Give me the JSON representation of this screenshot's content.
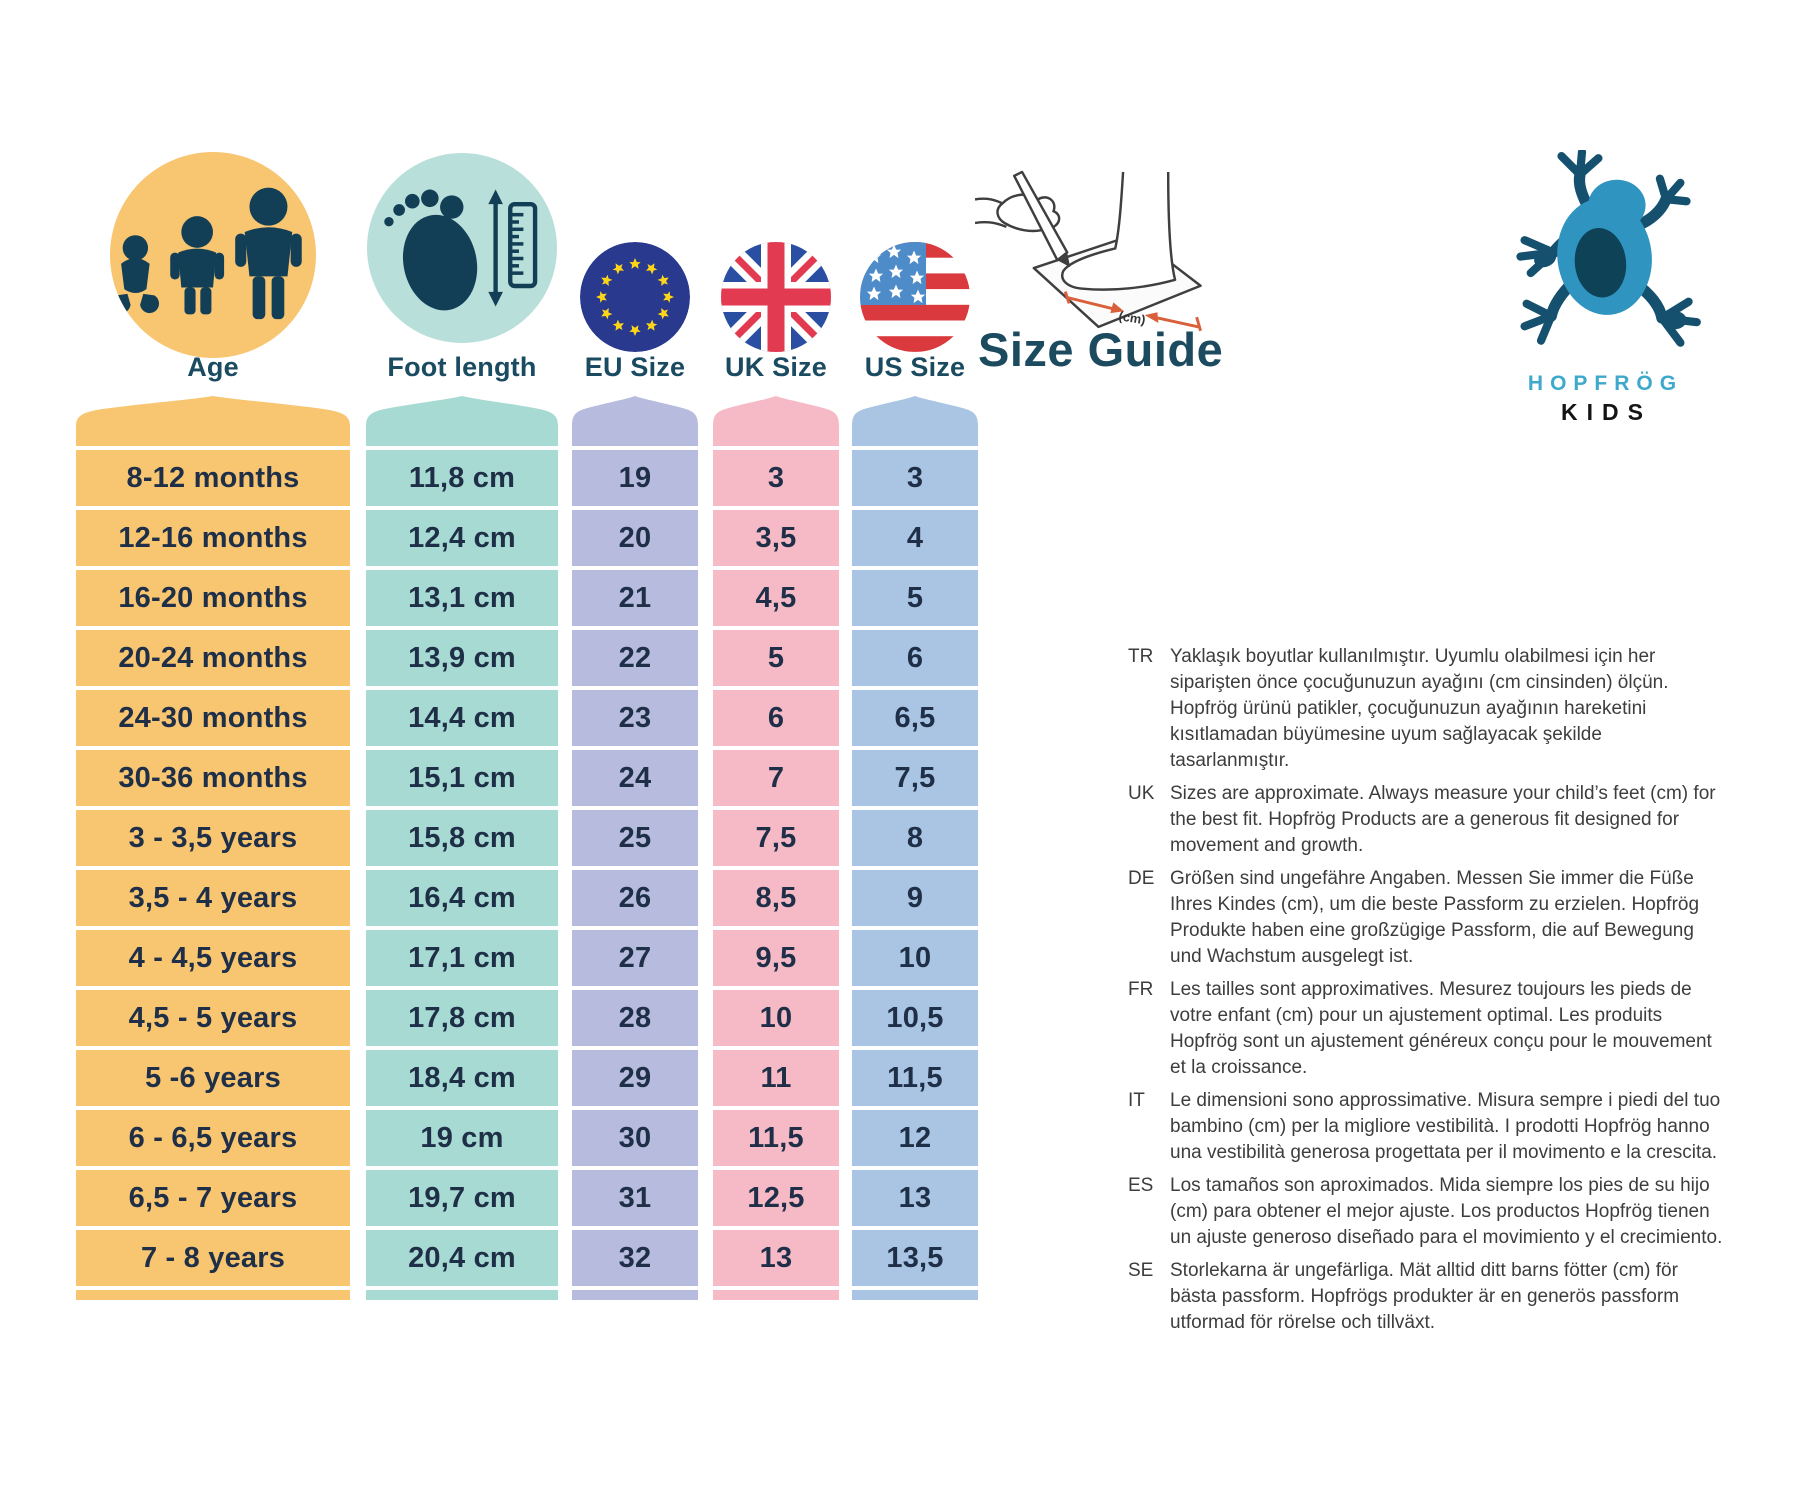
{
  "header": {
    "title": "Size Guide",
    "measure_label": "(cm)"
  },
  "brand": {
    "name": "HOPFRÖG",
    "sub": "KIDS"
  },
  "table": {
    "columns": [
      {
        "key": "age",
        "label": "Age"
      },
      {
        "key": "foot",
        "label": "Foot length"
      },
      {
        "key": "eu",
        "label": "EU Size"
      },
      {
        "key": "uk",
        "label": "UK Size"
      },
      {
        "key": "us",
        "label": "US Size"
      }
    ],
    "rows": [
      {
        "age": "8-12 months",
        "foot": "11,8 cm",
        "eu": "19",
        "uk": "3",
        "us": "3"
      },
      {
        "age": "12-16 months",
        "foot": "12,4 cm",
        "eu": "20",
        "uk": "3,5",
        "us": "4"
      },
      {
        "age": "16-20 months",
        "foot": "13,1 cm",
        "eu": "21",
        "uk": "4,5",
        "us": "5"
      },
      {
        "age": "20-24 months",
        "foot": "13,9 cm",
        "eu": "22",
        "uk": "5",
        "us": "6"
      },
      {
        "age": "24-30 months",
        "foot": "14,4 cm",
        "eu": "23",
        "uk": "6",
        "us": "6,5"
      },
      {
        "age": "30-36 months",
        "foot": "15,1 cm",
        "eu": "24",
        "uk": "7",
        "us": "7,5"
      },
      {
        "age": "3 - 3,5 years",
        "foot": "15,8 cm",
        "eu": "25",
        "uk": "7,5",
        "us": "8"
      },
      {
        "age": "3,5 - 4 years",
        "foot": "16,4 cm",
        "eu": "26",
        "uk": "8,5",
        "us": "9"
      },
      {
        "age": "4 - 4,5 years",
        "foot": "17,1 cm",
        "eu": "27",
        "uk": "9,5",
        "us": "10"
      },
      {
        "age": "4,5 - 5 years",
        "foot": "17,8 cm",
        "eu": "28",
        "uk": "10",
        "us": "10,5"
      },
      {
        "age": "5 -6 years",
        "foot": "18,4 cm",
        "eu": "29",
        "uk": "11",
        "us": "11,5"
      },
      {
        "age": "6 - 6,5 years",
        "foot": "19 cm",
        "eu": "30",
        "uk": "11,5",
        "us": "12"
      },
      {
        "age": "6,5 - 7 years",
        "foot": "19,7 cm",
        "eu": "31",
        "uk": "12,5",
        "us": "13"
      },
      {
        "age": "7 - 8 years",
        "foot": "20,4 cm",
        "eu": "32",
        "uk": "13",
        "us": "13,5"
      }
    ]
  },
  "languages": [
    {
      "code": "TR",
      "text": "Yaklaşık boyutlar kullanılmıştır. Uyumlu olabilmesi için her siparişten önce çocuğunuzun ayağını (cm cinsinden) ölçün. Hopfrög ürünü patikler, çocuğunuzun ayağının hareketini kısıtlamadan büyümesine uyum sağlayacak şekilde tasarlanmıştır."
    },
    {
      "code": "UK",
      "text": "Sizes are approximate. Always measure your child’s feet (cm) for the best fit.  Hopfrög Products are a generous fit designed for movement and growth."
    },
    {
      "code": "DE",
      "text": "Größen sind ungefähre Angaben. Messen Sie immer die Füße Ihres Kindes (cm), um die beste Passform zu erzielen. Hopfrög Produkte haben eine großzügige Passform, die auf Bewegung und Wachstum ausgelegt ist."
    },
    {
      "code": "FR",
      "text": "Les tailles sont approximatives. Mesurez toujours les pieds de votre enfant (cm) pour un ajustement optimal. Les produits Hopfrög sont un ajustement généreux conçu pour le mouvement et la croissance."
    },
    {
      "code": "IT",
      "text": "Le dimensioni sono approssimative. Misura sempre i piedi del tuo bambino (cm) per la migliore vestibilità. I prodotti Hopfrög hanno una vestibilità generosa progettata per il movimento e la crescita."
    },
    {
      "code": "ES",
      "text": "Los tamaños son aproximados. Mida siempre los pies de su hijo (cm) para obtener el mejor ajuste. Los productos Hopfrög tienen un ajuste generoso diseñado para el movimiento y el crecimiento."
    },
    {
      "code": "SE",
      "text": "Storlekarna är ungefärliga. Mät alltid ditt barns fötter (cm) för bästa passform. Hopfrögs produkter är en generös passform utformad för rörelse och tillväxt."
    }
  ],
  "colors": {
    "age_column": "#F8C571",
    "foot_column": "#A6DAD2",
    "eu_column": "#B7BCDF",
    "uk_column": "#F6BAC7",
    "us_column": "#AAC5E3",
    "icon_navy": "#123F56",
    "title_teal": "#1C4A5F",
    "brand_blue": "#3FA9CB",
    "arrow_orange": "#D9603B",
    "eu_flag_blue": "#28398E",
    "flag_red": "#DA3A3E"
  }
}
